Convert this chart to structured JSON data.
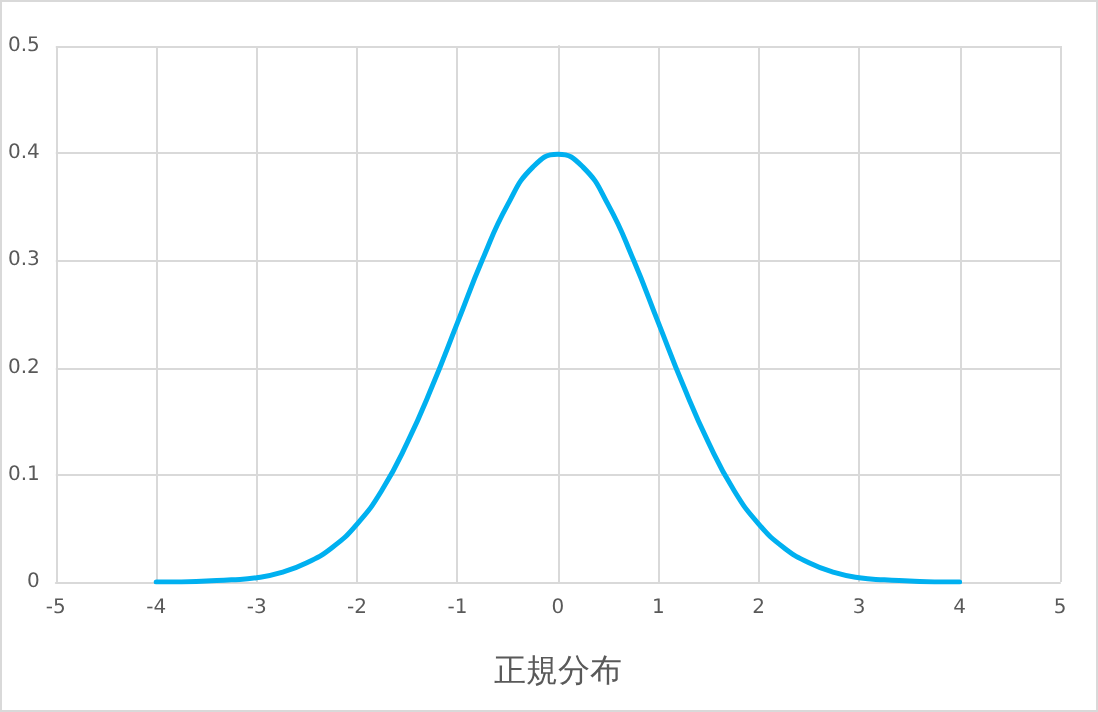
{
  "chart_data": {
    "type": "line",
    "xlabel": "正規分布",
    "x": [
      -4,
      -3.75,
      -3.5,
      -3.25,
      -3,
      -2.75,
      -2.5,
      -2.25,
      -2,
      -1.75,
      -1.5,
      -1.25,
      -1,
      -0.75,
      -0.5,
      -0.25,
      0,
      0.25,
      0.5,
      0.75,
      1,
      1.25,
      1.5,
      1.75,
      2,
      2.25,
      2.5,
      2.75,
      3,
      3.25,
      3.5,
      3.75,
      4
    ],
    "series": [
      {
        "color": "#00b0f0",
        "values": [
          0,
          0,
          0.001,
          0.002,
          0.004,
          0.009,
          0.018,
          0.032,
          0.054,
          0.086,
          0.13,
          0.183,
          0.242,
          0.301,
          0.352,
          0.387,
          0.399,
          0.387,
          0.352,
          0.301,
          0.242,
          0.183,
          0.13,
          0.086,
          0.054,
          0.032,
          0.018,
          0.009,
          0.004,
          0.002,
          0.001,
          0,
          0
        ]
      }
    ],
    "xlim": [
      -5,
      5
    ],
    "xticks": [
      -5,
      -4,
      -3,
      -2,
      -1,
      0,
      1,
      2,
      3,
      4,
      5
    ],
    "ylim": [
      0,
      0.5
    ],
    "yticks": [
      0,
      0.1,
      0.2,
      0.3,
      0.4,
      0.5
    ],
    "grid": true,
    "marker": "none",
    "line_style": "solid"
  }
}
